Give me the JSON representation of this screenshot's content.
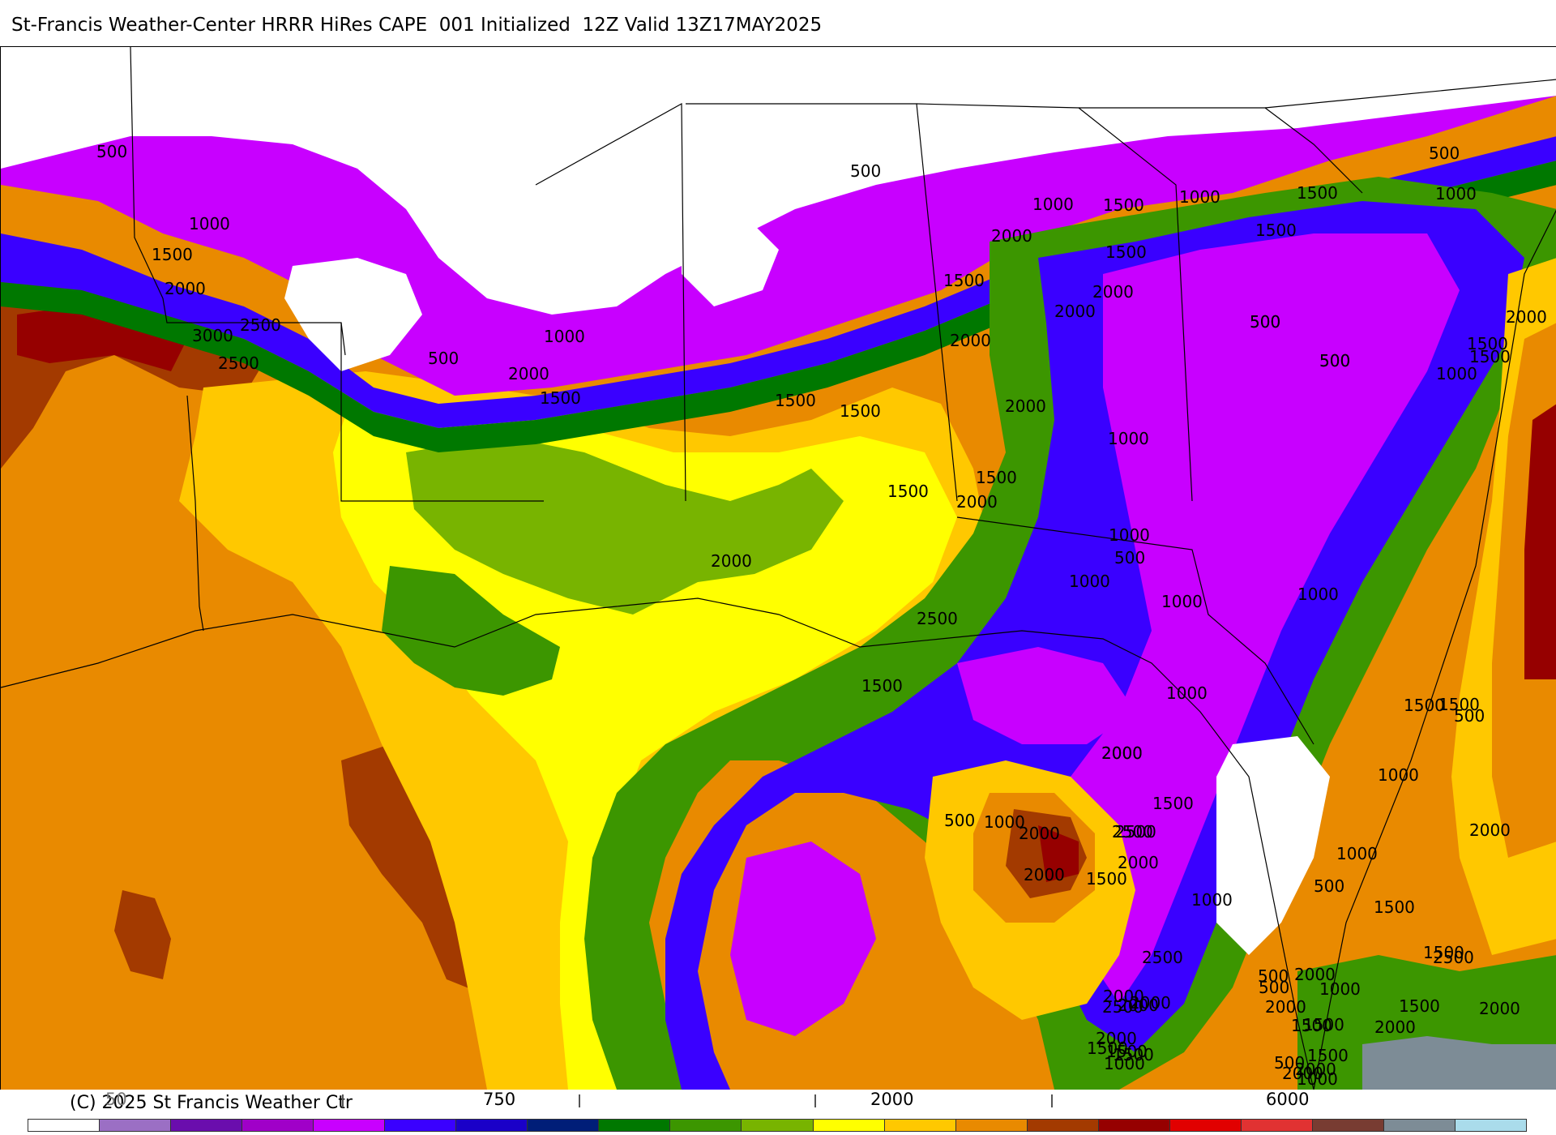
{
  "header": {
    "title": "St-Francis Weather-Center HRRR HiRes CAPE  001 Initialized  12Z Valid 13Z17MAY2025"
  },
  "map": {
    "field": "CAPE",
    "palette": {
      "none": "#ffffff",
      "p1": "#9b6fc4",
      "p2": "#6a0dad",
      "p3": "#c800ff",
      "blue1": "#3a00ff",
      "blue2": "#1a00c8",
      "navy": "#001e78",
      "green_dk": "#007800",
      "green": "#3c9600",
      "green_lt": "#78b400",
      "yellow": "#ffff00",
      "gold": "#ffc800",
      "orange": "#e98a00",
      "brown": "#a33a00",
      "darkred": "#960000",
      "red": "#e10000",
      "maroon": "#783c32",
      "gray": "#7d8c96",
      "cyan": "#aadceb"
    },
    "contour_labels": [
      "500",
      "1000",
      "1500",
      "2000",
      "2500",
      "3000",
      "2500",
      "500",
      "1500",
      "2000",
      "1000",
      "500",
      "2000",
      "1500",
      "1500",
      "2000",
      "1500",
      "1000",
      "1500",
      "1500",
      "2000",
      "2000",
      "2000",
      "1500",
      "1500",
      "500",
      "1000",
      "1000",
      "500",
      "500",
      "1500",
      "2000",
      "500",
      "1000",
      "1000",
      "500",
      "1500",
      "2000",
      "1000",
      "500",
      "1000",
      "1500",
      "2000",
      "2500",
      "1500",
      "2000",
      "1500",
      "1000",
      "2000",
      "2500",
      "2000",
      "2000",
      "2000",
      "2500",
      "2500",
      "1500",
      "1000",
      "500",
      "1000",
      "500",
      "1000",
      "1500",
      "2000",
      "1500",
      "500",
      "500",
      "1000",
      "1500",
      "1500",
      "2000",
      "1000",
      "1000",
      "1500",
      "1500",
      "500",
      "1000",
      "2000",
      "2500",
      "2000",
      "1500",
      "2000",
      "1500",
      "1500",
      "1500",
      "1000",
      "500",
      "2000",
      "1500",
      "1000",
      "2000",
      "2000",
      "2000",
      "2000",
      "2500",
      "1500",
      "2000"
    ]
  },
  "footer": {
    "copyright": "(C) 2025 St Francis Weather Ctr",
    "tick_labels": [
      "50",
      "750",
      "2000",
      "6000"
    ],
    "legend_colors": [
      "#ffffff",
      "#9b6fc4",
      "#6a0dad",
      "#a000c8",
      "#c800ff",
      "#3a00ff",
      "#1a00c8",
      "#001e78",
      "#007800",
      "#3c9600",
      "#78b400",
      "#ffff00",
      "#ffc800",
      "#e98a00",
      "#a33a00",
      "#960000",
      "#e10000",
      "#e13232",
      "#783c32",
      "#7d8c96",
      "#aadceb"
    ]
  }
}
